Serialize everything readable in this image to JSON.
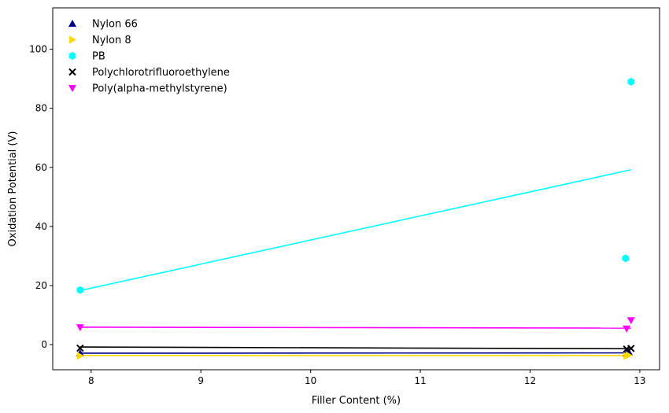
{
  "chart_data": {
    "type": "scatter",
    "title": "",
    "xlabel": "Filler Content (%)",
    "ylabel": "Oxidation Potential (V)",
    "xlim": [
      7.65,
      13.18
    ],
    "ylim": [
      -8.5,
      114
    ],
    "xticks": [
      8,
      9,
      10,
      11,
      12,
      13
    ],
    "yticks": [
      0,
      20,
      40,
      60,
      80,
      100
    ],
    "grid": false,
    "legend_position": "top-left",
    "series": [
      {
        "name": "Nylon 66",
        "marker": "triangle-up",
        "color": "#00008b",
        "points": [
          [
            7.9,
            -2.9
          ],
          [
            12.88,
            -2.9
          ],
          [
            12.9,
            -2.5
          ]
        ],
        "fit": [
          [
            7.9,
            -2.9
          ],
          [
            12.9,
            -2.8
          ]
        ]
      },
      {
        "name": "Nylon 8",
        "marker": "triangle-right",
        "color": "#ffd700",
        "points": [
          [
            7.9,
            -3.8
          ],
          [
            12.88,
            -3.8
          ],
          [
            12.9,
            -3.6
          ]
        ],
        "fit": [
          [
            7.9,
            -3.7
          ],
          [
            12.9,
            -3.7
          ]
        ]
      },
      {
        "name": "PB",
        "marker": "hexagon",
        "color": "#00ffff",
        "points": [
          [
            7.9,
            18.5
          ],
          [
            12.87,
            29.2
          ],
          [
            12.92,
            89.0
          ]
        ],
        "fit": [
          [
            7.9,
            18.3
          ],
          [
            12.92,
            59.2
          ]
        ]
      },
      {
        "name": "Polychlorotrifluoroethylene",
        "marker": "x",
        "color": "#000000",
        "points": [
          [
            7.9,
            -1.2
          ],
          [
            12.88,
            -1.5
          ],
          [
            12.92,
            -1.3
          ]
        ],
        "fit": [
          [
            7.9,
            -0.8
          ],
          [
            12.92,
            -1.4
          ]
        ]
      },
      {
        "name": "Poly(alpha-methylstyrene)",
        "marker": "triangle-down",
        "color": "#ff00ff",
        "points": [
          [
            7.9,
            5.8
          ],
          [
            12.88,
            5.4
          ],
          [
            12.92,
            8.2
          ]
        ],
        "fit": [
          [
            7.9,
            5.9
          ],
          [
            12.92,
            5.6
          ]
        ]
      }
    ]
  }
}
